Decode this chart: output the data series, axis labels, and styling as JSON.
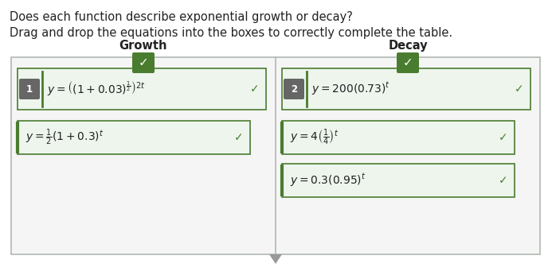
{
  "title_line1": "Does each function describe exponential growth or decay?",
  "title_line2": "Drag and drop the equations into the boxes to correctly complete the table.",
  "growth_label": "Growth",
  "decay_label": "Decay",
  "bg_color": "#ffffff",
  "outer_box_edge": "#b0b8b0",
  "outer_box_face": "#f5f5f5",
  "inner_box_fill": "#edf5ed",
  "inner_box_border": "#4a7c2f",
  "number_box_color": "#666666",
  "checkmark_box_color": "#4a7c2f",
  "text_color": "#222222",
  "checkmark_color": "#ffffff",
  "divider_color": "#b0b8b0",
  "tri_color": "#999999",
  "title_fontsize": 10.5,
  "label_fontsize": 10.5,
  "eq_fontsize": 10,
  "num_fontsize": 8.5,
  "check_fontsize": 10
}
